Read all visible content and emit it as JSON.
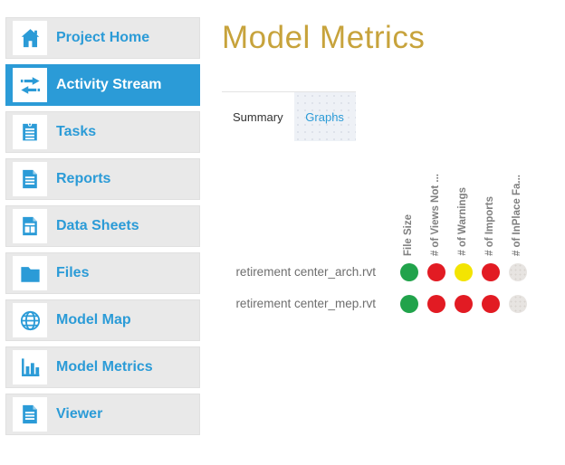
{
  "sidebar": {
    "items": [
      {
        "label": "Project Home",
        "icon": "home",
        "active": false
      },
      {
        "label": "Activity Stream",
        "icon": "activity-arrows",
        "active": true
      },
      {
        "label": "Tasks",
        "icon": "clipboard",
        "active": false
      },
      {
        "label": "Reports",
        "icon": "report-document",
        "active": false
      },
      {
        "label": "Data Sheets",
        "icon": "data-sheet",
        "active": false
      },
      {
        "label": "Files",
        "icon": "folder",
        "active": false
      },
      {
        "label": "Model Map",
        "icon": "globe",
        "active": false
      },
      {
        "label": "Model Metrics",
        "icon": "bar-chart",
        "active": false
      },
      {
        "label": "Viewer",
        "icon": "viewer-document",
        "active": false
      }
    ]
  },
  "main": {
    "title": "Model Metrics",
    "tabs": [
      {
        "label": "Summary",
        "active": false
      },
      {
        "label": "Graphs",
        "active": true
      }
    ]
  },
  "matrix": {
    "columns": [
      "File Size",
      "# of Views Not ...",
      "# of Warnings",
      "# of Imports",
      "# of InPlace Fa..."
    ],
    "rows": [
      {
        "label": "retirement center_arch.rvt",
        "statuses": [
          "green",
          "red",
          "yellow",
          "red",
          "gray"
        ]
      },
      {
        "label": "retirement center_mep.rvt",
        "statuses": [
          "green",
          "red",
          "red",
          "red",
          "gray"
        ]
      }
    ]
  },
  "colors": {
    "accent_blue": "#2b9bd7",
    "title_gold": "#c7a33c",
    "status_green": "#21a34b",
    "status_red": "#e21b23",
    "status_yellow": "#f3e402",
    "status_gray": "#e7e4e1"
  }
}
